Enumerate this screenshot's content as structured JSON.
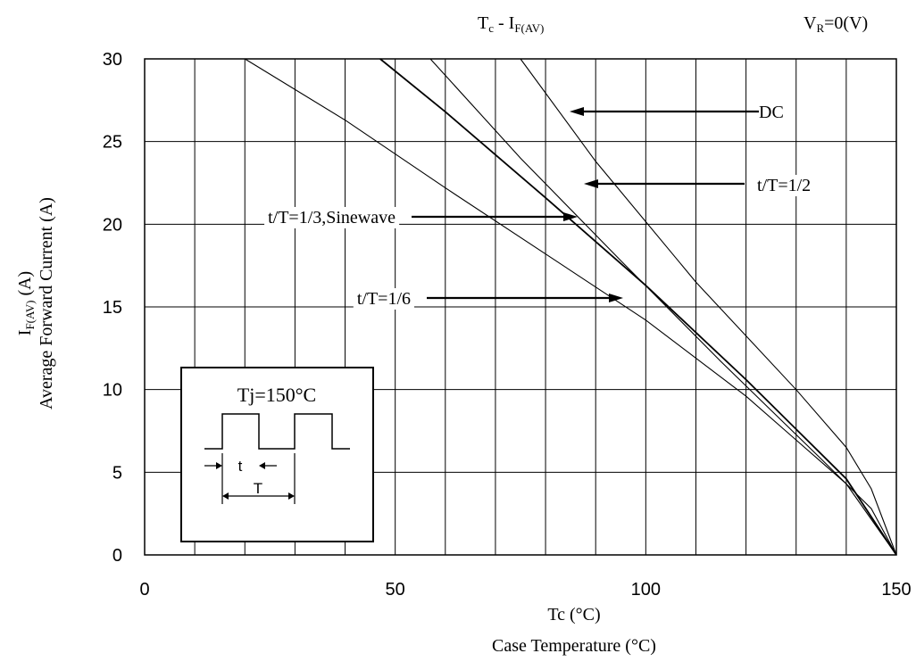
{
  "chart_data": {
    "type": "line",
    "title_main": "T",
    "title_main_sub": "c",
    "title_sep": " - I",
    "title_sub": "F(AV)",
    "condition_prefix": "V",
    "condition_sub": "R",
    "condition_suffix": "=0(V)",
    "xlabel": "Tc (°C)",
    "xlabel2": "Case Temperature (°C)",
    "ylabel_prefix": "I",
    "ylabel_sub": "F(AV)",
    "ylabel_suffix": " (A)",
    "ylabel2": "Average Forward Current (A)",
    "xlim": [
      0,
      150
    ],
    "ylim": [
      0,
      30
    ],
    "grid": true,
    "x_major_ticks": [
      "0",
      "50",
      "100",
      "150"
    ],
    "y_major_ticks": [
      "0",
      "5",
      "10",
      "15",
      "20",
      "25",
      "30"
    ],
    "series": [
      {
        "name": "DC",
        "x": [
          75,
          90,
          110,
          130,
          140,
          145,
          150
        ],
        "y": [
          30,
          23.8,
          16.5,
          10.0,
          6.5,
          4.0,
          0
        ]
      },
      {
        "name": "t/T=1/2",
        "x": [
          57,
          75,
          95,
          115,
          135,
          145,
          150
        ],
        "y": [
          30,
          24.0,
          17.8,
          11.7,
          5.8,
          2.8,
          0
        ]
      },
      {
        "name": "t/T=1/3,Sinewave",
        "x": [
          47,
          60,
          80,
          100,
          120,
          140,
          150
        ],
        "y": [
          30,
          26.8,
          21.6,
          16.3,
          10.6,
          4.6,
          0
        ]
      },
      {
        "name": "t/T=1/6",
        "x": [
          20,
          40,
          60,
          80,
          100,
          120,
          140,
          150
        ],
        "y": [
          30,
          26.3,
          22.2,
          18.2,
          14.2,
          9.6,
          4.3,
          0
        ]
      }
    ],
    "annotations": [
      {
        "text": "DC",
        "series": "DC"
      },
      {
        "text": "t/T=1/2",
        "series": "t/T=1/2"
      },
      {
        "text": "t/T=1/3,Sinewave",
        "series": "t/T=1/3,Sinewave"
      },
      {
        "text": "t/T=1/6",
        "series": "t/T=1/6"
      }
    ],
    "inset": {
      "label": "Tj=150°C",
      "t_label": "t",
      "T_label": "T"
    }
  }
}
